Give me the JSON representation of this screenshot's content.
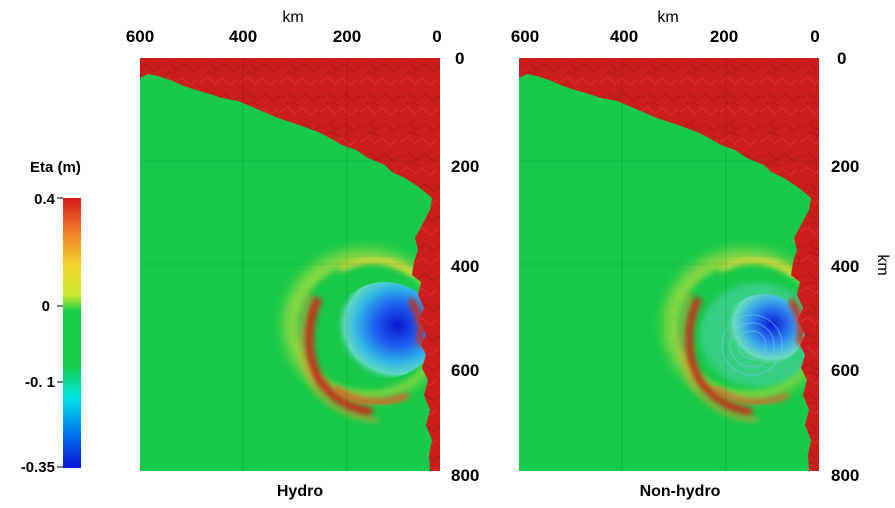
{
  "colorbar": {
    "title": "Eta (m)",
    "ticks": [
      {
        "label": "0.4",
        "value": 0.4
      },
      {
        "label": "0",
        "value": 0
      },
      {
        "label": "-0. 1",
        "value": -0.1
      },
      {
        "label": "-0.35",
        "value": -0.35
      }
    ],
    "colors": [
      "#d7191c",
      "#f07a28",
      "#f2d42c",
      "#c9ea2f",
      "#14cc45",
      "#00e6e6",
      "#0078f0",
      "#0a14d8"
    ]
  },
  "axes": {
    "x_unit": "km",
    "y_unit": "km",
    "x_ticks": [
      "600",
      "400",
      "200",
      "0"
    ],
    "y_ticks": [
      "0",
      "200",
      "400",
      "600",
      "800"
    ],
    "x_range_km": [
      600,
      0
    ],
    "y_range_km": [
      0,
      800
    ]
  },
  "panels": [
    {
      "title": "Hydro"
    },
    {
      "title": "Non-hydro"
    }
  ],
  "colors": {
    "land": "#cc1d1d",
    "ocean": "#15c94a"
  }
}
